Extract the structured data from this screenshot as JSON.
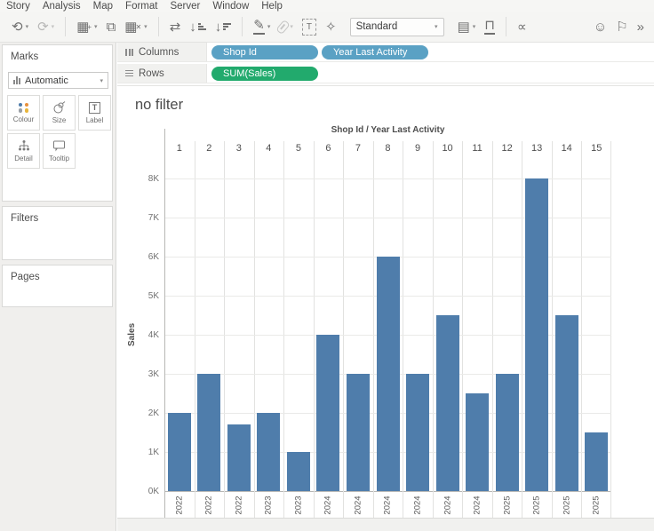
{
  "menu": {
    "items": [
      "Story",
      "Analysis",
      "Map",
      "Format",
      "Server",
      "Window",
      "Help"
    ]
  },
  "toolbar": {
    "items": [
      {
        "name": "pause-auto-updates-icon",
        "glyph": "⟲",
        "caret": true
      },
      {
        "name": "run-update-icon",
        "glyph": "⟳",
        "caret": true,
        "disabled": true
      },
      {
        "type": "divider"
      },
      {
        "name": "new-worksheet-icon",
        "glyph": "▦",
        "badge": "+",
        "caret": true
      },
      {
        "name": "duplicate-sheet-icon",
        "glyph": "⧉"
      },
      {
        "name": "clear-sheet-icon",
        "glyph": "▦",
        "badge": "✕",
        "caret": true
      },
      {
        "type": "divider"
      },
      {
        "name": "swap-rows-columns-icon",
        "glyph": "⇄"
      },
      {
        "name": "sort-ascending-icon",
        "glyph": "↓",
        "bars": "asc"
      },
      {
        "name": "sort-descending-icon",
        "glyph": "↓",
        "bars": "desc"
      },
      {
        "type": "divider"
      },
      {
        "name": "highlight-pen-icon",
        "glyph": "✎",
        "underline": true,
        "caret": true
      },
      {
        "name": "hyperlink-icon",
        "glyph": "clip",
        "caret": true,
        "disabled": true
      },
      {
        "name": "text-annotation-icon",
        "glyph": "T",
        "dashed": true
      },
      {
        "name": "highlight-star-icon",
        "glyph": "✧"
      },
      {
        "type": "select",
        "name": "fit-selector",
        "value": "Standard"
      },
      {
        "name": "show-mark-labels-icon",
        "glyph": "▤",
        "caret": true
      },
      {
        "name": "presentation-mode-icon",
        "glyph": "⊓",
        "underline": true
      },
      {
        "type": "divider"
      },
      {
        "name": "share-icon",
        "glyph": "∝"
      },
      {
        "type": "spacer"
      },
      {
        "name": "feedback-face-icon",
        "glyph": "☺"
      },
      {
        "name": "flag-icon",
        "glyph": "⚐"
      },
      {
        "name": "overflow-chevron-icon",
        "glyph": "»"
      }
    ]
  },
  "shelves": {
    "columns": {
      "label": "Columns",
      "pills": [
        {
          "label": "Shop Id",
          "color": "#5aa1c4"
        },
        {
          "label": "Year Last Activity",
          "color": "#5aa1c4"
        }
      ]
    },
    "rows": {
      "label": "Rows",
      "pills": [
        {
          "label": "SUM(Sales)",
          "color": "#22aa6d"
        }
      ]
    }
  },
  "marks": {
    "title": "Marks",
    "type_selector": {
      "value": "Automatic"
    },
    "buttons": [
      {
        "name": "colour-button",
        "label": "Colour",
        "icon": "colour"
      },
      {
        "name": "size-button",
        "label": "Size",
        "icon": "size"
      },
      {
        "name": "label-button",
        "label": "Label",
        "icon": "label"
      },
      {
        "name": "detail-button",
        "label": "Detail",
        "icon": "detail"
      },
      {
        "name": "tooltip-button",
        "label": "Tooltip",
        "icon": "tooltip"
      }
    ]
  },
  "filters": {
    "title": "Filters"
  },
  "pages": {
    "title": "Pages"
  },
  "sheet": {
    "title": "no filter"
  },
  "chart_data": {
    "type": "bar",
    "title": "no filter",
    "column_header": "Shop Id / Year Last Activity",
    "categories": [
      "1",
      "2",
      "3",
      "4",
      "5",
      "6",
      "7",
      "8",
      "9",
      "10",
      "11",
      "12",
      "13",
      "14",
      "15"
    ],
    "year_labels": [
      "2022",
      "2022",
      "2022",
      "2023",
      "2023",
      "2024",
      "2024",
      "2024",
      "2024",
      "2024",
      "2024",
      "2025",
      "2025",
      "2025",
      "2025"
    ],
    "values": [
      2000,
      3000,
      1700,
      2000,
      1000,
      4000,
      3000,
      6000,
      3000,
      4500,
      2500,
      3000,
      8000,
      4500,
      1500
    ],
    "ylabel": "Sales",
    "y_ticks": [
      "0K",
      "1K",
      "2K",
      "3K",
      "4K",
      "5K",
      "6K",
      "7K",
      "8K"
    ],
    "ylim": [
      0,
      8500
    ],
    "grid": true,
    "legend": "none",
    "bar_color": "#4f7dab"
  }
}
